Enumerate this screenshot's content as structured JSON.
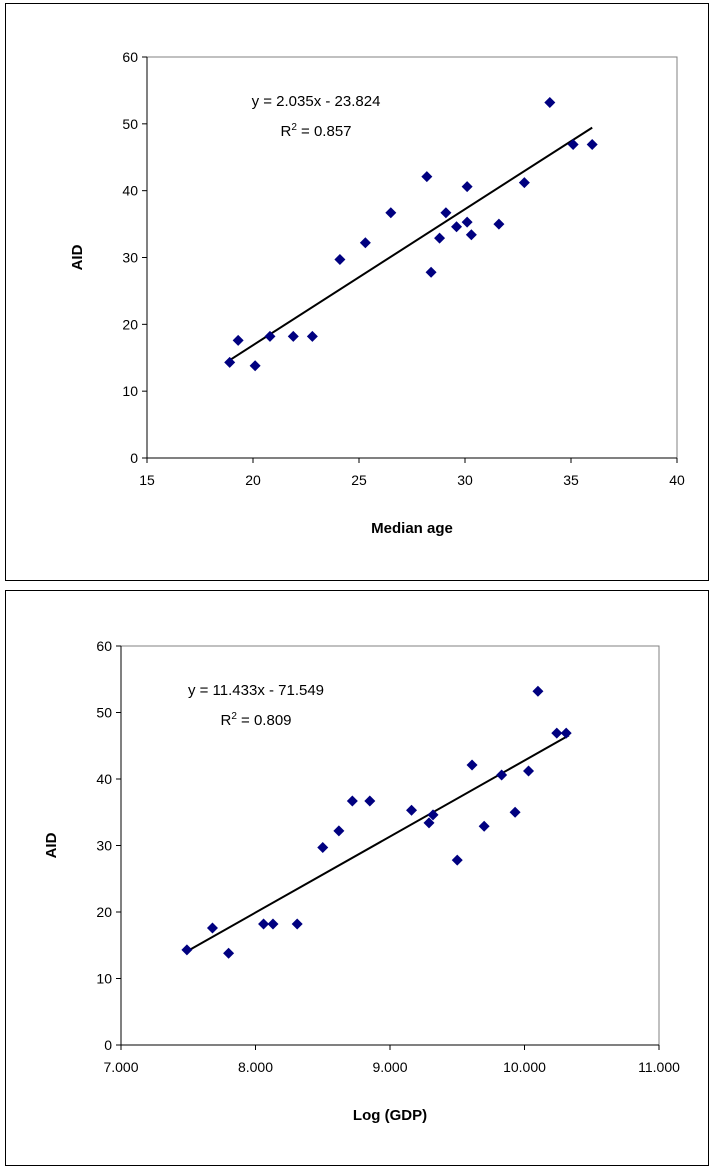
{
  "chart_data": [
    {
      "type": "scatter",
      "xlabel": "Median age",
      "ylabel": "AID",
      "xlim": [
        15,
        40
      ],
      "ylim": [
        0,
        60
      ],
      "xticks": [
        "15",
        "20",
        "25",
        "30",
        "35",
        "40"
      ],
      "yticks": [
        "0",
        "10",
        "20",
        "30",
        "40",
        "50",
        "60"
      ],
      "grid": false,
      "marker_color": "#000080",
      "trendline": {
        "slope": 2.035,
        "intercept": -23.824,
        "x_range": [
          18.9,
          36.0
        ]
      },
      "annotation": {
        "equation": "y = 2.035x - 23.824",
        "r2_prefix": "R",
        "r2_sup": "2",
        "r2_value": " = 0.857"
      },
      "points": [
        [
          18.9,
          14.3
        ],
        [
          19.3,
          17.6
        ],
        [
          20.1,
          13.8
        ],
        [
          20.8,
          18.2
        ],
        [
          21.9,
          18.2
        ],
        [
          22.8,
          18.2
        ],
        [
          24.1,
          29.7
        ],
        [
          25.3,
          32.2
        ],
        [
          26.5,
          36.7
        ],
        [
          28.2,
          42.1
        ],
        [
          28.4,
          27.8
        ],
        [
          28.8,
          32.9
        ],
        [
          29.1,
          36.7
        ],
        [
          29.6,
          34.6
        ],
        [
          30.1,
          40.6
        ],
        [
          30.1,
          35.3
        ],
        [
          30.3,
          33.4
        ],
        [
          31.6,
          35.0
        ],
        [
          32.8,
          41.2
        ],
        [
          34.0,
          53.2
        ],
        [
          35.1,
          46.9
        ],
        [
          36.0,
          46.9
        ]
      ]
    },
    {
      "type": "scatter",
      "xlabel": "Log (GDP)",
      "ylabel": "AID",
      "xlim": [
        7,
        11
      ],
      "ylim": [
        0,
        60
      ],
      "xticks": [
        "7.000",
        "8.000",
        "9.000",
        "10.000",
        "11.000"
      ],
      "yticks": [
        "0",
        "10",
        "20",
        "30",
        "40",
        "50",
        "60"
      ],
      "grid": false,
      "marker_color": "#000080",
      "trendline": {
        "slope": 11.433,
        "intercept": -71.549,
        "x_range": [
          7.5,
          10.33
        ]
      },
      "annotation": {
        "equation": "y = 11.433x - 71.549",
        "r2_prefix": "R",
        "r2_sup": "2",
        "r2_value": " = 0.809"
      },
      "points": [
        [
          7.49,
          14.3
        ],
        [
          7.68,
          17.6
        ],
        [
          7.8,
          13.8
        ],
        [
          8.06,
          18.2
        ],
        [
          8.13,
          18.2
        ],
        [
          8.31,
          18.2
        ],
        [
          8.5,
          29.7
        ],
        [
          8.62,
          32.2
        ],
        [
          8.72,
          36.7
        ],
        [
          8.85,
          36.7
        ],
        [
          9.16,
          35.3
        ],
        [
          9.29,
          33.4
        ],
        [
          9.32,
          34.6
        ],
        [
          9.5,
          27.8
        ],
        [
          9.61,
          42.1
        ],
        [
          9.7,
          32.9
        ],
        [
          9.83,
          40.6
        ],
        [
          9.93,
          35.0
        ],
        [
          10.03,
          41.2
        ],
        [
          10.1,
          53.2
        ],
        [
          10.24,
          46.9
        ],
        [
          10.31,
          46.9
        ]
      ]
    }
  ]
}
